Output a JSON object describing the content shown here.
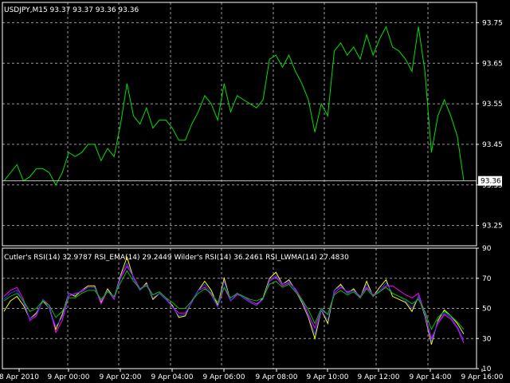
{
  "colors": {
    "background": "#000000",
    "grid": "#9a9a9a",
    "frame": "#ffffff",
    "text": "#ffffff",
    "price_line": "#00e000",
    "bid_line": "#c0c0c0",
    "price_tag_bg": "#ffffff",
    "price_tag_text": "#000000"
  },
  "chart_data": [
    {
      "type": "line",
      "name": "main",
      "title": "USDJPY,M15  93.37 93.37 93.36 93.36",
      "ylim": [
        93.2,
        93.8
      ],
      "y_ticks": [
        "93.75",
        "93.65",
        "93.55",
        "93.45",
        "93.35",
        "93.25"
      ],
      "y_tick_values": [
        93.75,
        93.65,
        93.55,
        93.45,
        93.35,
        93.25
      ],
      "current_price": 93.36,
      "current_price_label": "93.36",
      "grid": true,
      "series": [
        {
          "color": "#00e000",
          "values": [
            93.36,
            93.38,
            93.4,
            93.36,
            93.37,
            93.39,
            93.39,
            93.38,
            93.35,
            93.38,
            93.43,
            93.42,
            93.43,
            93.45,
            93.45,
            93.41,
            93.44,
            93.42,
            93.5,
            93.6,
            93.52,
            93.5,
            93.54,
            93.49,
            93.51,
            93.51,
            93.49,
            93.46,
            93.46,
            93.5,
            93.53,
            93.57,
            93.55,
            93.51,
            93.6,
            93.53,
            93.57,
            93.56,
            93.55,
            93.54,
            93.56,
            93.66,
            93.67,
            93.64,
            93.67,
            93.63,
            93.6,
            93.56,
            93.48,
            93.55,
            93.52,
            93.68,
            93.7,
            93.67,
            93.69,
            93.66,
            93.72,
            93.67,
            93.71,
            93.74,
            93.69,
            93.68,
            93.66,
            93.63,
            93.74,
            93.63,
            93.43,
            93.52,
            93.56,
            93.52,
            93.47,
            93.36
          ]
        }
      ]
    },
    {
      "type": "line",
      "name": "indicator",
      "title": "Cutler's RSI(14) 32.9787  RSI_EMA(14) 29.2449  Wilder's RSI(14) 36.2461  RSI_LWMA(14) 27.4830",
      "ylim": [
        10,
        90
      ],
      "y_ticks": [
        "90",
        "70",
        "50",
        "30",
        "10"
      ],
      "y_tick_values": [
        90,
        70,
        50,
        30,
        10
      ],
      "grid": true,
      "x_ticks": [
        "8 Apr 2010",
        "9 Apr 00:00",
        "9 Apr 02:00",
        "9 Apr 04:00",
        "9 Apr 06:00",
        "9 Apr 08:00",
        "9 Apr 10:00",
        "9 Apr 12:00",
        "9 Apr 14:00",
        "9 Apr 16:00"
      ],
      "series": [
        {
          "color": "#ffff00",
          "values": [
            48,
            55,
            58,
            52,
            43,
            47,
            55,
            50,
            36,
            46,
            60,
            58,
            62,
            65,
            65,
            54,
            63,
            57,
            72,
            84,
            70,
            62,
            67,
            56,
            60,
            56,
            52,
            44,
            45,
            55,
            62,
            68,
            62,
            52,
            70,
            55,
            60,
            57,
            54,
            52,
            57,
            70,
            74,
            66,
            69,
            62,
            54,
            44,
            30,
            49,
            40,
            62,
            66,
            60,
            63,
            57,
            68,
            58,
            64,
            69,
            58,
            56,
            54,
            48,
            58,
            45,
            26,
            42,
            49,
            45,
            40,
            33
          ]
        },
        {
          "color": "#ff00ff",
          "values": [
            58,
            62,
            64,
            56,
            42,
            45,
            56,
            52,
            34,
            42,
            58,
            60,
            61,
            64,
            64,
            53,
            62,
            56,
            70,
            78,
            71,
            63,
            66,
            59,
            61,
            57,
            51,
            47,
            47,
            54,
            62,
            64,
            59,
            51,
            64,
            55,
            59,
            58,
            55,
            53,
            56,
            68,
            71,
            65,
            67,
            63,
            56,
            46,
            37,
            49,
            46,
            60,
            64,
            61,
            62,
            58,
            64,
            59,
            61,
            65,
            65,
            62,
            59,
            57,
            60,
            47,
            30,
            40,
            46,
            43,
            37,
            27
          ]
        },
        {
          "color": "#3030ff",
          "values": [
            56,
            60,
            62,
            54,
            43,
            46,
            56,
            50,
            38,
            44,
            60,
            59,
            62,
            64,
            64,
            55,
            62,
            57,
            71,
            80,
            70,
            62,
            66,
            57,
            60,
            56,
            51,
            45,
            46,
            55,
            62,
            66,
            60,
            51,
            68,
            55,
            60,
            57,
            54,
            52,
            56,
            69,
            72,
            66,
            68,
            62,
            55,
            45,
            33,
            49,
            42,
            62,
            65,
            60,
            62,
            57,
            66,
            58,
            62,
            67,
            60,
            58,
            55,
            50,
            58,
            46,
            28,
            41,
            47,
            44,
            38,
            29
          ]
        },
        {
          "color": "#00c000",
          "values": [
            55,
            58,
            60,
            55,
            48,
            50,
            55,
            52,
            44,
            48,
            57,
            57,
            60,
            62,
            62,
            56,
            61,
            58,
            67,
            75,
            68,
            63,
            65,
            59,
            61,
            57,
            54,
            50,
            50,
            55,
            60,
            63,
            60,
            54,
            64,
            57,
            60,
            58,
            56,
            55,
            57,
            66,
            68,
            64,
            66,
            61,
            56,
            49,
            40,
            50,
            46,
            59,
            62,
            59,
            61,
            57,
            63,
            58,
            61,
            64,
            60,
            58,
            56,
            53,
            56,
            48,
            36,
            44,
            48,
            45,
            41,
            36
          ]
        }
      ]
    }
  ]
}
